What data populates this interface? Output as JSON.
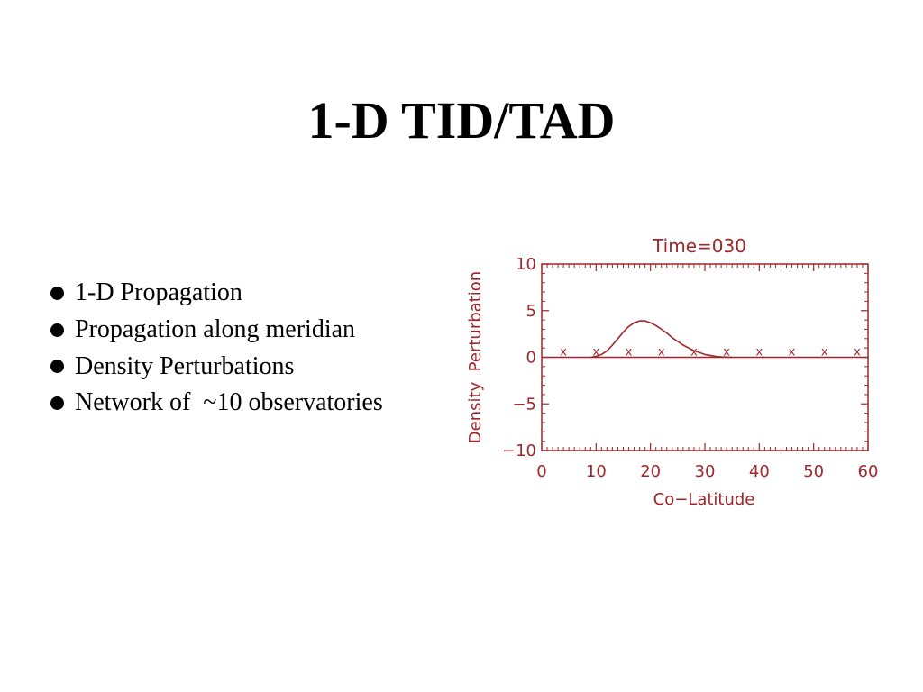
{
  "slide": {
    "title": "1-D TID/TAD",
    "bullets": [
      "1-D Propagation",
      "Propagation along meridian",
      "Density Perturbations",
      "Network of  ~10 observatories"
    ]
  },
  "chart_data": {
    "type": "line",
    "title": "Time=030",
    "xlabel": "Co−Latitude",
    "ylabel": "Density  Perturbation",
    "xlim": [
      0,
      60
    ],
    "ylim": [
      -10,
      10
    ],
    "x_ticks": [
      0,
      10,
      20,
      30,
      40,
      50,
      60
    ],
    "y_ticks": [
      10,
      5,
      0,
      -5,
      -10
    ],
    "x_tick_labels": [
      "0",
      "10",
      "20",
      "30",
      "40",
      "50",
      "60"
    ],
    "y_tick_labels": [
      "10",
      "5",
      "0",
      "−5",
      "−10"
    ],
    "color": "#a0262a",
    "grid": false,
    "series": [
      {
        "kind": "line",
        "x": [
          9,
          10,
          11,
          12,
          13,
          14,
          15,
          16,
          17,
          18,
          19,
          20,
          21,
          22,
          23,
          24,
          25,
          26,
          27,
          28,
          29,
          30,
          31,
          32,
          33,
          34,
          35
        ],
        "y": [
          0.0,
          0.1,
          0.3,
          0.7,
          1.3,
          2.0,
          2.7,
          3.3,
          3.7,
          3.9,
          3.9,
          3.7,
          3.4,
          3.0,
          2.6,
          2.1,
          1.7,
          1.3,
          1.0,
          0.7,
          0.5,
          0.3,
          0.2,
          0.1,
          0.05,
          0.02,
          0.0
        ]
      },
      {
        "kind": "markers",
        "marker": "x",
        "x": [
          4,
          10,
          16,
          22,
          28,
          34,
          40,
          46,
          52,
          58
        ],
        "y": [
          0.5,
          0.5,
          0.5,
          0.5,
          0.5,
          0.5,
          0.5,
          0.5,
          0.5,
          0.5
        ]
      }
    ]
  }
}
